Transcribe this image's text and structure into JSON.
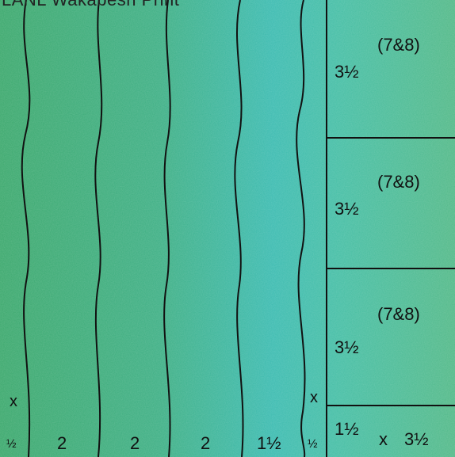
{
  "title": "LANL Wakabesh Print",
  "colors": {
    "fabric_left": "#3fae74",
    "fabric_mid": "#3ab8a6",
    "fabric_right": "#4bbd94",
    "line": "#111111"
  },
  "strips": {
    "widths": [
      "½",
      "2",
      "2",
      "2",
      "1½",
      "½"
    ],
    "cut_marks": [
      "x",
      "x"
    ]
  },
  "blocks": [
    {
      "size": "(7&8)",
      "width": "3½"
    },
    {
      "size": "(7&8)",
      "width": "3½"
    },
    {
      "size": "(7&8)",
      "width": "3½"
    }
  ],
  "bottom_block": {
    "height": "1½",
    "times": "x",
    "width": "3½"
  }
}
